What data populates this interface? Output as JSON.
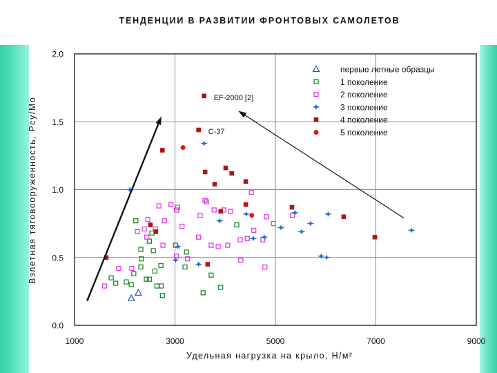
{
  "chart_data": {
    "type": "scatter",
    "title": "ТЕНДЕНЦИИ В РАЗВИТИИ ФРОНТОВЫХ САМОЛЕТОВ",
    "xlabel": "Удельная нагрузка на крыло, Н/м²",
    "ylabel": "Взлетная тяговооруженность, Рсу/Мо",
    "xlim": [
      1000,
      9000
    ],
    "ylim": [
      0,
      2.0
    ],
    "xticks": [
      "1000",
      "3000",
      "5000",
      "7000",
      "9000"
    ],
    "yticks": [
      "0.0",
      "0.5",
      "1.0",
      "1.5",
      "2.0"
    ],
    "grid": true,
    "legend": "top-right",
    "series": [
      {
        "name": "первые летные образцы",
        "marker": "triangle-open",
        "color": "#2050d0",
        "points": [
          [
            2130,
            0.2
          ],
          [
            2270,
            0.24
          ]
        ]
      },
      {
        "name": "1 поколение",
        "marker": "square-open",
        "color": "#1a8c2a",
        "points": [
          [
            1730,
            0.35
          ],
          [
            1820,
            0.31
          ],
          [
            2030,
            0.32
          ],
          [
            2130,
            0.3
          ],
          [
            2180,
            0.38
          ],
          [
            2220,
            0.77
          ],
          [
            2320,
            0.56
          ],
          [
            2330,
            0.49
          ],
          [
            2320,
            0.43
          ],
          [
            2430,
            0.34
          ],
          [
            2490,
            0.34
          ],
          [
            2490,
            0.62
          ],
          [
            2540,
            0.68
          ],
          [
            2570,
            0.55
          ],
          [
            2600,
            0.4
          ],
          [
            2640,
            0.29
          ],
          [
            2720,
            0.44
          ],
          [
            2730,
            0.29
          ],
          [
            2750,
            0.22
          ],
          [
            3010,
            0.59
          ],
          [
            3200,
            0.43
          ],
          [
            3230,
            0.54
          ],
          [
            3560,
            0.24
          ],
          [
            3720,
            0.37
          ],
          [
            3910,
            0.28
          ],
          [
            4230,
            0.74
          ]
        ]
      },
      {
        "name": "2 поколение",
        "marker": "square-open",
        "color": "#e03ce0",
        "points": [
          [
            1600,
            0.29
          ],
          [
            1880,
            0.42
          ],
          [
            2140,
            0.42
          ],
          [
            2250,
            0.69
          ],
          [
            2390,
            0.71
          ],
          [
            2440,
            0.65
          ],
          [
            2460,
            0.78
          ],
          [
            2610,
            0.71
          ],
          [
            2680,
            0.88
          ],
          [
            2760,
            0.59
          ],
          [
            2790,
            0.77
          ],
          [
            2920,
            0.89
          ],
          [
            3030,
            0.85
          ],
          [
            3050,
            0.87
          ],
          [
            3140,
            0.73
          ],
          [
            3030,
            0.51
          ],
          [
            3250,
            0.49
          ],
          [
            3470,
            0.65
          ],
          [
            3500,
            0.81
          ],
          [
            3600,
            0.92
          ],
          [
            3630,
            0.91
          ],
          [
            3720,
            0.59
          ],
          [
            3780,
            0.85
          ],
          [
            3860,
            0.58
          ],
          [
            3970,
            0.85
          ],
          [
            4050,
            0.59
          ],
          [
            4110,
            0.84
          ],
          [
            4300,
            0.63
          ],
          [
            4310,
            0.48
          ],
          [
            4440,
            0.64
          ],
          [
            4520,
            0.98
          ],
          [
            4570,
            0.7
          ],
          [
            4750,
            0.63
          ],
          [
            4790,
            0.43
          ],
          [
            4820,
            0.8
          ],
          [
            4960,
            0.75
          ],
          [
            5340,
            0.81
          ]
        ]
      },
      {
        "name": "3 поколение",
        "marker": "star",
        "color": "#1e6fe0",
        "points": [
          [
            2100,
            1.0
          ],
          [
            3060,
            0.58
          ],
          [
            3010,
            0.48
          ],
          [
            3470,
            0.45
          ],
          [
            3580,
            1.34
          ],
          [
            3890,
            0.77
          ],
          [
            4420,
            0.82
          ],
          [
            4560,
            0.64
          ],
          [
            4780,
            0.65
          ],
          [
            5110,
            0.72
          ],
          [
            5390,
            0.83
          ],
          [
            5520,
            0.69
          ],
          [
            5700,
            0.75
          ],
          [
            5910,
            0.51
          ],
          [
            6020,
            0.5
          ],
          [
            6050,
            0.82
          ],
          [
            7710,
            0.7
          ]
        ]
      },
      {
        "name": "4 поколение",
        "marker": "square-filled",
        "color": "#b01515",
        "points": [
          [
            1630,
            0.5
          ],
          [
            2510,
            0.74
          ],
          [
            2620,
            0.69
          ],
          [
            2750,
            1.29
          ],
          [
            3470,
            1.44,
            "С-37"
          ],
          [
            3580,
            1.69,
            "EF-2000 [2]"
          ],
          [
            3600,
            1.13
          ],
          [
            3650,
            0.45
          ],
          [
            3790,
            1.04
          ],
          [
            3910,
            0.84
          ],
          [
            4010,
            1.16
          ],
          [
            4130,
            1.12
          ],
          [
            4410,
            1.06
          ],
          [
            4410,
            0.89
          ],
          [
            5330,
            0.87
          ],
          [
            6360,
            0.8
          ],
          [
            6980,
            0.65
          ]
        ]
      },
      {
        "name": "5 поколение",
        "marker": "circle-filled",
        "color": "#e01818",
        "points": [
          [
            3160,
            1.31
          ],
          [
            4530,
            0.81
          ]
        ]
      }
    ],
    "trend_arrows": [
      {
        "from": [
          1250,
          0.18
        ],
        "to": [
          2730,
          1.54
        ]
      },
      {
        "from": [
          7560,
          0.79
        ],
        "to": [
          4260,
          1.58
        ]
      }
    ]
  }
}
